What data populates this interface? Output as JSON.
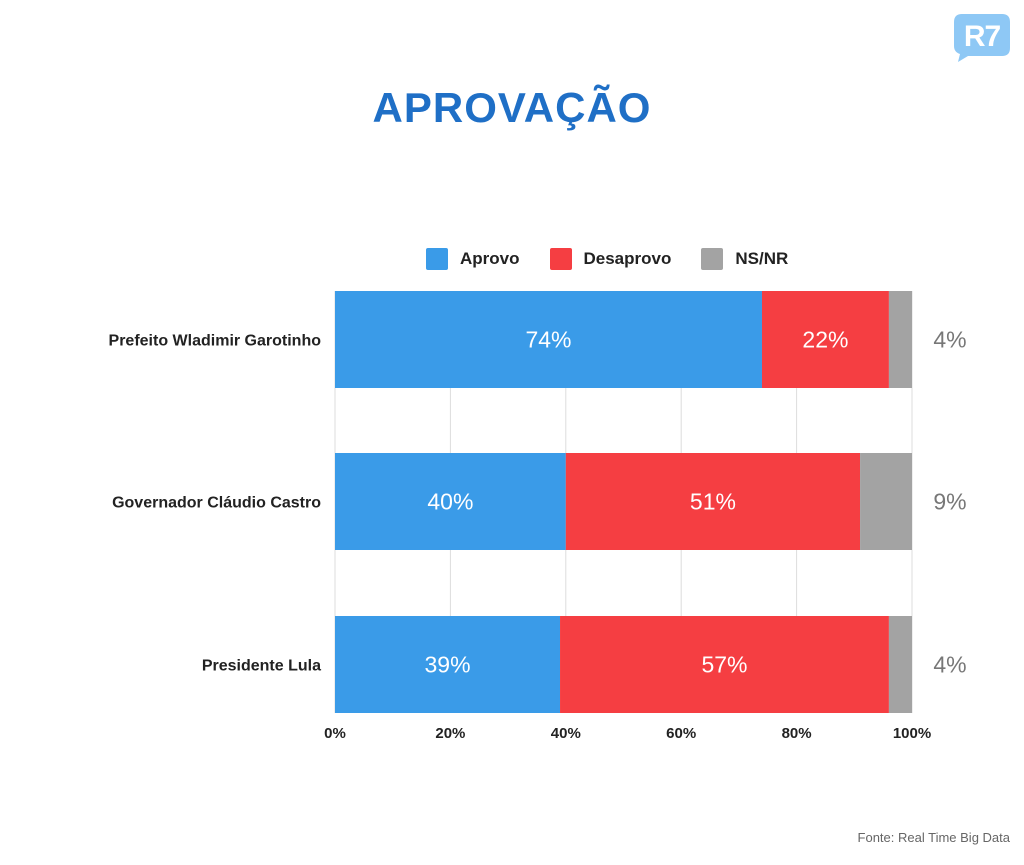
{
  "logo": {
    "text": "R7",
    "color": "#8ec8f5"
  },
  "title": "APROVAÇÃO",
  "source": "Fonte: Real Time Big Data",
  "chart_data": {
    "type": "bar",
    "orientation": "horizontal",
    "stacked": true,
    "categories": [
      "Prefeito Wladimir Garotinho",
      "Governador Cláudio Castro",
      "Presidente Lula"
    ],
    "series": [
      {
        "name": "Aprovo",
        "color": "#3a9be8",
        "values": [
          74,
          40,
          39
        ],
        "labels": [
          "74%",
          "40%",
          "39%"
        ]
      },
      {
        "name": "Desaprovo",
        "color": "#f53e42",
        "values": [
          22,
          51,
          57
        ],
        "labels": [
          "22%",
          "51%",
          "57%"
        ]
      },
      {
        "name": "NS/NR",
        "color": "#a3a3a3",
        "values": [
          4,
          9,
          4
        ],
        "labels": [
          "4%",
          "9%",
          "4%"
        ]
      }
    ],
    "xlim": [
      0,
      100
    ],
    "xticks": [
      "0%",
      "20%",
      "40%",
      "60%",
      "80%",
      "100%"
    ],
    "grid": true,
    "legend": "top"
  }
}
